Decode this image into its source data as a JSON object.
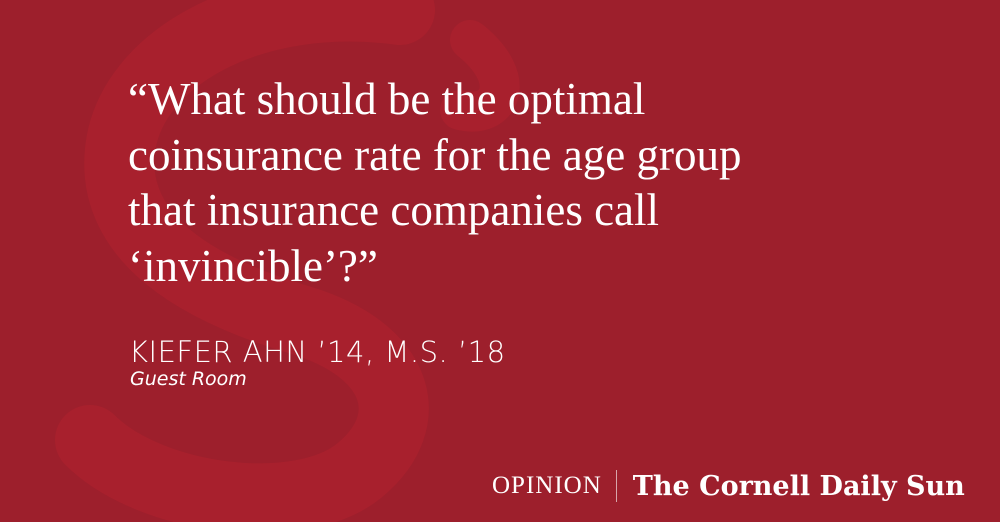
{
  "quote": "“What should be the optimal coinsurance rate for the age group that insurance companies call ‘invincible’?”",
  "quote_lines": [
    "“What should be the optimal",
    "coinsurance rate for the age group",
    "that insurance companies call",
    "‘invincible’?”"
  ],
  "author": "KIEFER AHN ’14, M.S. ’18",
  "column": "Guest Room",
  "footer": {
    "section": "OPINION",
    "publication": "The Cornell Daily Sun"
  },
  "colors": {
    "background": "#9d1f2c",
    "watermark": "#a8202d",
    "text": "#ffffff"
  }
}
